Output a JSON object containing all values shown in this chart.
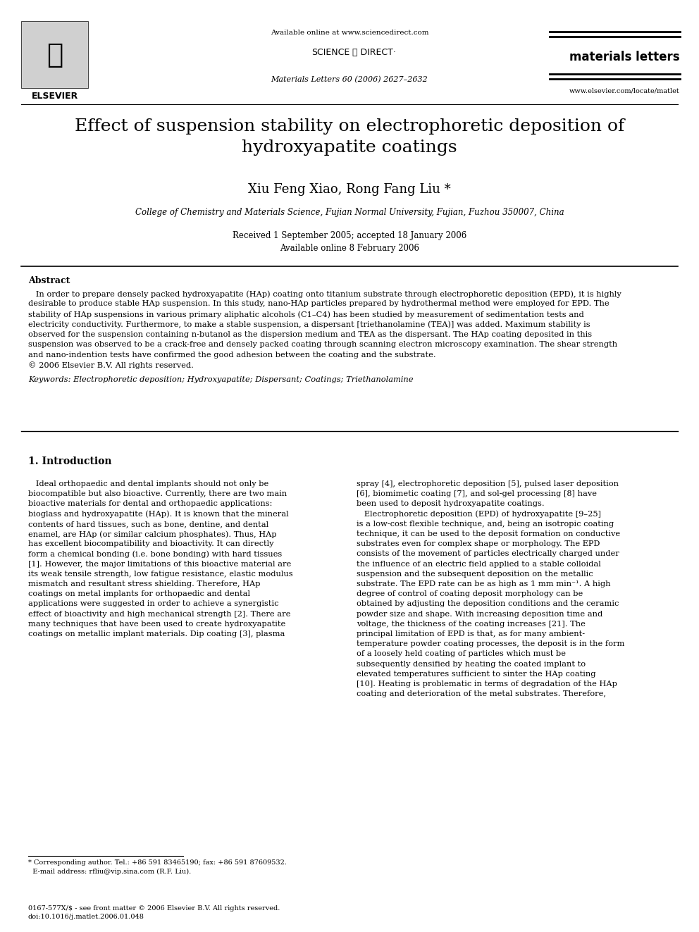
{
  "bg_color": "#ffffff",
  "header": {
    "available_online": "Available online at www.sciencedirect.com",
    "sciencedirect": "SCIENCE ⓐ DIRECT·",
    "journal": "materials letters",
    "journal_info": "Materials Letters 60 (2006) 2627–2632",
    "website": "www.elsevier.com/locate/matlet"
  },
  "title": "Effect of suspension stability on electrophoretic deposition of\nhydroxyapatite coatings",
  "authors": "Xiu Feng Xiao, Rong Fang Liu *",
  "affiliation": "College of Chemistry and Materials Science, Fujian Normal University, Fujian, Fuzhou 350007, China",
  "dates": "Received 1 September 2005; accepted 18 January 2006\nAvailable online 8 February 2006",
  "abstract_title": "Abstract",
  "abstract_text": "In order to prepare densely packed hydroxyapatite (HAp) coating onto titanium substrate through electrophoretic deposition (EPD), it is highly desirable to produce stable HAp suspension. In this study, nano-HAp particles prepared by hydrothermal method were employed for EPD. The stability of HAp suspensions in various primary aliphatic alcohols (C1–C4) has been studied by measurement of sedimentation tests and electricity conductivity. Furthermore, to make a stable suspension, a dispersant [triethanolamine (TEA)] was added. Maximum stability is observed for the suspension containing n-butanol as the dispersion medium and TEA as the dispersant. The HAp coating deposited in this suspension was observed to be a crack-free and densely packed coating through scanning electron microscopy examination. The shear strength and nano-indention tests have confirmed the good adhesion between the coating and the substrate.\n© 2006 Elsevier B.V. All rights reserved.",
  "keywords": "Keywords: Electrophoretic deposition; Hydroxyapatite; Dispersant; Coatings; Triethanolamine",
  "section1_title": "1. Introduction",
  "section1_col1": "Ideal orthopaedic and dental implants should not only be biocompatible but also bioactive. Currently, there are two main bioactive materials for dental and orthopaedic applications: bioglass and hydroxyapatite (HAp). It is known that the mineral contents of hard tissues, such as bone, dentine, and dental enamel, are HAp (or similar calcium phosphates). Thus, HAp has excellent biocompatibility and bioactivity. It can directly form a chemical bonding (i.e. bone bonding) with hard tissues [1]. However, the major limitations of this bioactive material are its weak tensile strength, low fatigue resistance, elastic modulus mismatch and resultant stress shielding. Therefore, HAp coatings on metal implants for orthopaedic and dental applications were suggested in order to achieve a synergistic effect of bioactivity and high mechanical strength [2]. There are many techniques that have been used to create hydroxyapatite coatings on metallic implant materials. Dip coating [3], plasma",
  "section1_col2": "spray [4], electrophoretic deposition [5], pulsed laser deposition [6], biomimetic coating [7], and sol-gel processing [8] have been used to deposit hydroxyapatite coatings.\n    Electrophoretic deposition (EPD) of hydroxyapatite [9–25] is a low-cost flexible technique, and, being an isotropic coating technique, it can be used to the deposit formation on conductive substrates even for complex shape or morphology. The EPD consists of the movement of particles electrically charged under the influence of an electric field applied to a stable colloidal suspension and the subsequent deposition on the metallic substrate. The EPD rate can be as high as 1 mm min⁻¹. A high degree of control of coating deposit morphology can be obtained by adjusting the deposition conditions and the ceramic powder size and shape. With increasing deposition time and voltage, the thickness of the coating increases [21]. The principal limitation of EPD is that, as for many ambient-temperature powder coating processes, the deposit is in the form of a loosely held coating of particles which must be subsequently densified by heating the coated implant to elevated temperatures sufficient to sinter the HAp coating [10]. Heating is problematic in terms of degradation of the HAp coating and deterioration of the metal substrates. Therefore,",
  "footnote": "* Corresponding author. Tel.: +86 591 83465190; fax: +86 591 87609532.\n  E-mail address: rfliu@vip.sina.com (R.F. Liu).",
  "copyright_footer": "0167-577X/$ - see front matter © 2006 Elsevier B.V. All rights reserved.\ndoi:10.1016/j.matlet.2006.01.048"
}
